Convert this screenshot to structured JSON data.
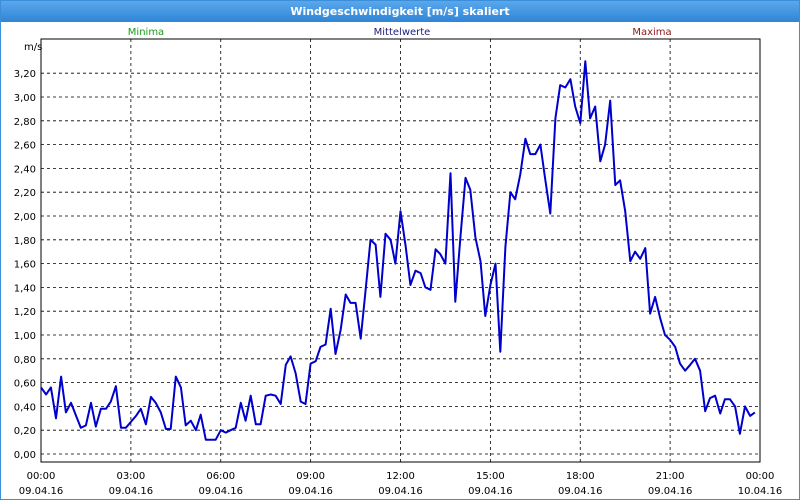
{
  "window": {
    "title": "Windgeschwindigkeit [m/s] skaliert"
  },
  "legend": {
    "min": {
      "label": "Minima",
      "color": "#1a9a1a"
    },
    "mean": {
      "label": "Mittelwerte",
      "color": "#20207a"
    },
    "max": {
      "label": "Maxima",
      "color": "#8b1a1a"
    }
  },
  "chart_data": {
    "type": "line",
    "title": "Windgeschwindigkeit [m/s] skaliert",
    "ylabel": "m/s",
    "xlabel": "",
    "ylim": [
      0,
      3.3
    ],
    "grid": true,
    "line_color": "#0000cc",
    "y_ticks": [
      "0,00",
      "0,20",
      "0,40",
      "0,60",
      "0,80",
      "1,00",
      "1,20",
      "1,40",
      "1,60",
      "1,80",
      "2,00",
      "2,20",
      "2,40",
      "2,60",
      "2,80",
      "3,00",
      "3,20"
    ],
    "x_ticks": [
      {
        "time": "00:00",
        "date": "09.04.16"
      },
      {
        "time": "03:00",
        "date": "09.04.16"
      },
      {
        "time": "06:00",
        "date": "09.04.16"
      },
      {
        "time": "09:00",
        "date": "09.04.16"
      },
      {
        "time": "12:00",
        "date": "09.04.16"
      },
      {
        "time": "15:00",
        "date": "09.04.16"
      },
      {
        "time": "18:00",
        "date": "09.04.16"
      },
      {
        "time": "21:00",
        "date": "09.04.16"
      },
      {
        "time": "00:00",
        "date": "10.04.16"
      }
    ],
    "x_hours": [
      0.0,
      0.17,
      0.33,
      0.5,
      0.67,
      0.83,
      1.0,
      1.17,
      1.33,
      1.5,
      1.67,
      1.83,
      2.0,
      2.17,
      2.33,
      2.5,
      2.67,
      2.83,
      3.0,
      3.17,
      3.33,
      3.5,
      3.67,
      3.83,
      4.0,
      4.17,
      4.33,
      4.5,
      4.67,
      4.83,
      5.0,
      5.17,
      5.33,
      5.5,
      5.67,
      5.83,
      6.0,
      6.17,
      6.33,
      6.5,
      6.67,
      6.83,
      7.0,
      7.17,
      7.33,
      7.5,
      7.67,
      7.83,
      8.0,
      8.17,
      8.33,
      8.5,
      8.67,
      8.83,
      9.0,
      9.17,
      9.33,
      9.5,
      9.67,
      9.83,
      10.0,
      10.17,
      10.33,
      10.5,
      10.67,
      10.83,
      11.0,
      11.17,
      11.33,
      11.5,
      11.67,
      11.83,
      12.0,
      12.17,
      12.33,
      12.5,
      12.67,
      12.83,
      13.0,
      13.17,
      13.33,
      13.5,
      13.67,
      13.83,
      14.0,
      14.17,
      14.33,
      14.5,
      14.67,
      14.83,
      15.0,
      15.17,
      15.33,
      15.5,
      15.67,
      15.83,
      16.0,
      16.17,
      16.33,
      16.5,
      16.67,
      16.83,
      17.0,
      17.17,
      17.33,
      17.5,
      17.67,
      17.83,
      18.0,
      18.17,
      18.33,
      18.5,
      18.67,
      18.83,
      19.0,
      19.17,
      19.33,
      19.5,
      19.67,
      19.83,
      20.0,
      20.17,
      20.33,
      20.5,
      20.67,
      20.83,
      21.0,
      21.17,
      21.33,
      21.5,
      21.67,
      21.83,
      22.0,
      22.17,
      22.33,
      22.5,
      22.67,
      22.83,
      23.0,
      23.17,
      23.33,
      23.5,
      23.67,
      23.83
    ],
    "series": [
      {
        "values": [
          0.56,
          0.5,
          0.56,
          0.3,
          0.65,
          0.35,
          0.43,
          0.32,
          0.22,
          0.24,
          0.43,
          0.23,
          0.38,
          0.38,
          0.44,
          0.57,
          0.22,
          0.22,
          0.27,
          0.32,
          0.38,
          0.25,
          0.48,
          0.43,
          0.35,
          0.21,
          0.21,
          0.65,
          0.56,
          0.24,
          0.28,
          0.2,
          0.33,
          0.12,
          0.12,
          0.12,
          0.2,
          0.18,
          0.2,
          0.22,
          0.43,
          0.28,
          0.49,
          0.25,
          0.25,
          0.49,
          0.5,
          0.49,
          0.42,
          0.75,
          0.82,
          0.68,
          0.44,
          0.42,
          0.76,
          0.78,
          0.9,
          0.92,
          1.22,
          0.84,
          1.04,
          1.34,
          1.27,
          1.27,
          0.97,
          1.36,
          1.8,
          1.76,
          1.32,
          1.85,
          1.8,
          1.6,
          2.04,
          1.75,
          1.42,
          1.54,
          1.52,
          1.4,
          1.38,
          1.72,
          1.68,
          1.6,
          2.36,
          1.28,
          1.82,
          2.32,
          2.22,
          1.82,
          1.62,
          1.16,
          1.42,
          1.6,
          0.86,
          1.74,
          2.2,
          2.14,
          2.35,
          2.65,
          2.52,
          2.52,
          2.6,
          2.31,
          2.02,
          2.82,
          3.1,
          3.08,
          3.15,
          2.92,
          2.78,
          3.3,
          2.82,
          2.92,
          2.46,
          2.6,
          2.97,
          2.26,
          2.3,
          2.04,
          1.62,
          1.7,
          1.64,
          1.73,
          1.18,
          1.32,
          1.14,
          1.0,
          0.96,
          0.9,
          0.76,
          0.7,
          0.75,
          0.8,
          0.7,
          0.36,
          0.47,
          0.49,
          0.34,
          0.46,
          0.46,
          0.4,
          0.17,
          0.4,
          0.32,
          0.35
        ]
      }
    ]
  }
}
